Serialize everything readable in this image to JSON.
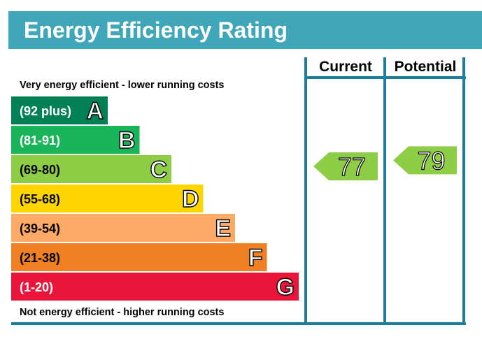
{
  "header": {
    "title": "Energy Efficiency Rating"
  },
  "columns": {
    "current": "Current",
    "potential": "Potential"
  },
  "captions": {
    "top": "Very energy efficient - lower running costs",
    "bottom": "Not energy efficient - higher running costs"
  },
  "chart_data": {
    "type": "bar",
    "title": "Energy Efficiency Rating",
    "categories": [
      "A",
      "B",
      "C",
      "D",
      "E",
      "F",
      "G"
    ],
    "bands": [
      {
        "letter": "A",
        "range": "(92 plus)",
        "min": 92,
        "max": 100,
        "color": "#008054",
        "text_color": "#ffffff"
      },
      {
        "letter": "B",
        "range": "(81-91)",
        "min": 81,
        "max": 91,
        "color": "#19b459",
        "text_color": "#ffffff"
      },
      {
        "letter": "C",
        "range": "(69-80)",
        "min": 69,
        "max": 80,
        "color": "#8dce46",
        "text_color": "#000000"
      },
      {
        "letter": "D",
        "range": "(55-68)",
        "min": 55,
        "max": 68,
        "color": "#ffd500",
        "text_color": "#000000"
      },
      {
        "letter": "E",
        "range": "(39-54)",
        "min": 39,
        "max": 54,
        "color": "#fcaa65",
        "text_color": "#000000"
      },
      {
        "letter": "F",
        "range": "(21-38)",
        "min": 21,
        "max": 38,
        "color": "#ef8023",
        "text_color": "#000000"
      },
      {
        "letter": "G",
        "range": "(1-20)",
        "min": 1,
        "max": 20,
        "color": "#e9153b",
        "text_color": "#ffffff"
      }
    ],
    "ratings": {
      "current": {
        "value": 77,
        "band": "C",
        "color": "#8dce46"
      },
      "potential": {
        "value": 79,
        "band": "C",
        "color": "#8dce46"
      }
    },
    "frame_color": "#1c7da0"
  }
}
